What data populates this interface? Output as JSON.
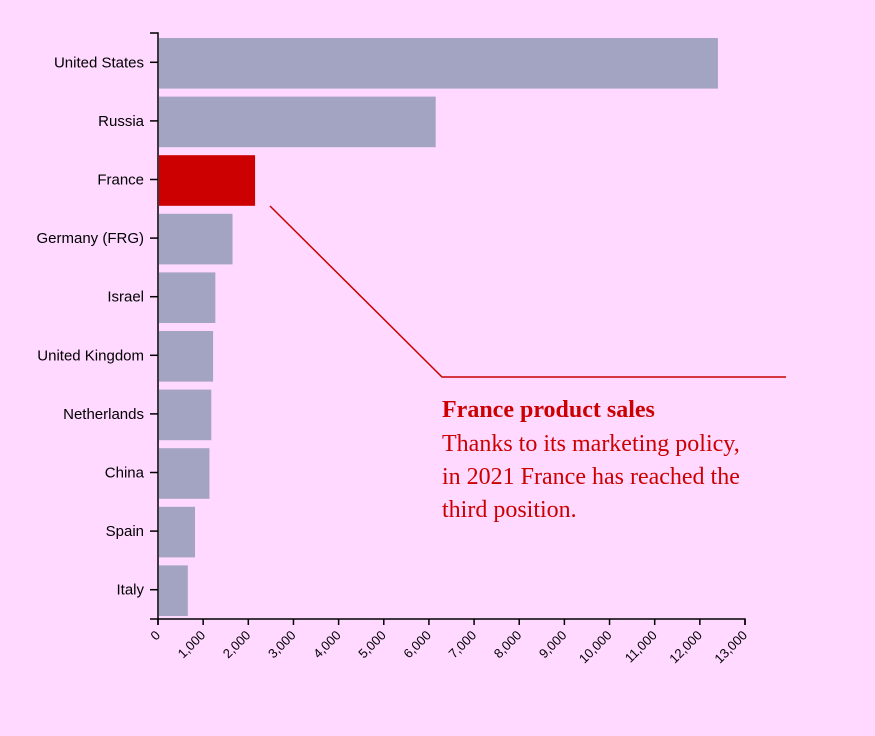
{
  "chart_data": {
    "type": "bar",
    "orientation": "horizontal",
    "categories": [
      "United States",
      "Russia",
      "France",
      "Germany (FRG)",
      "Israel",
      "United Kingdom",
      "Netherlands",
      "China",
      "Spain",
      "Italy"
    ],
    "values": [
      12400,
      6150,
      2150,
      1650,
      1270,
      1220,
      1180,
      1140,
      820,
      660
    ],
    "xlim": [
      0,
      13000
    ],
    "xticks": [
      "0",
      "1,000",
      "2,000",
      "3,000",
      "4,000",
      "5,000",
      "6,000",
      "7,000",
      "8,000",
      "9,000",
      "10,000",
      "11,000",
      "12,000",
      "13,000"
    ],
    "bar_color": "#a3a3c2",
    "highlight_category": "France",
    "highlight_color": "#cc0000",
    "grid": false,
    "annotation": {
      "title": "France product sales",
      "lines": [
        "Thanks to its marketing policy,",
        "in 2021 France has reached the",
        "third position."
      ],
      "color": "#cc0000"
    }
  }
}
